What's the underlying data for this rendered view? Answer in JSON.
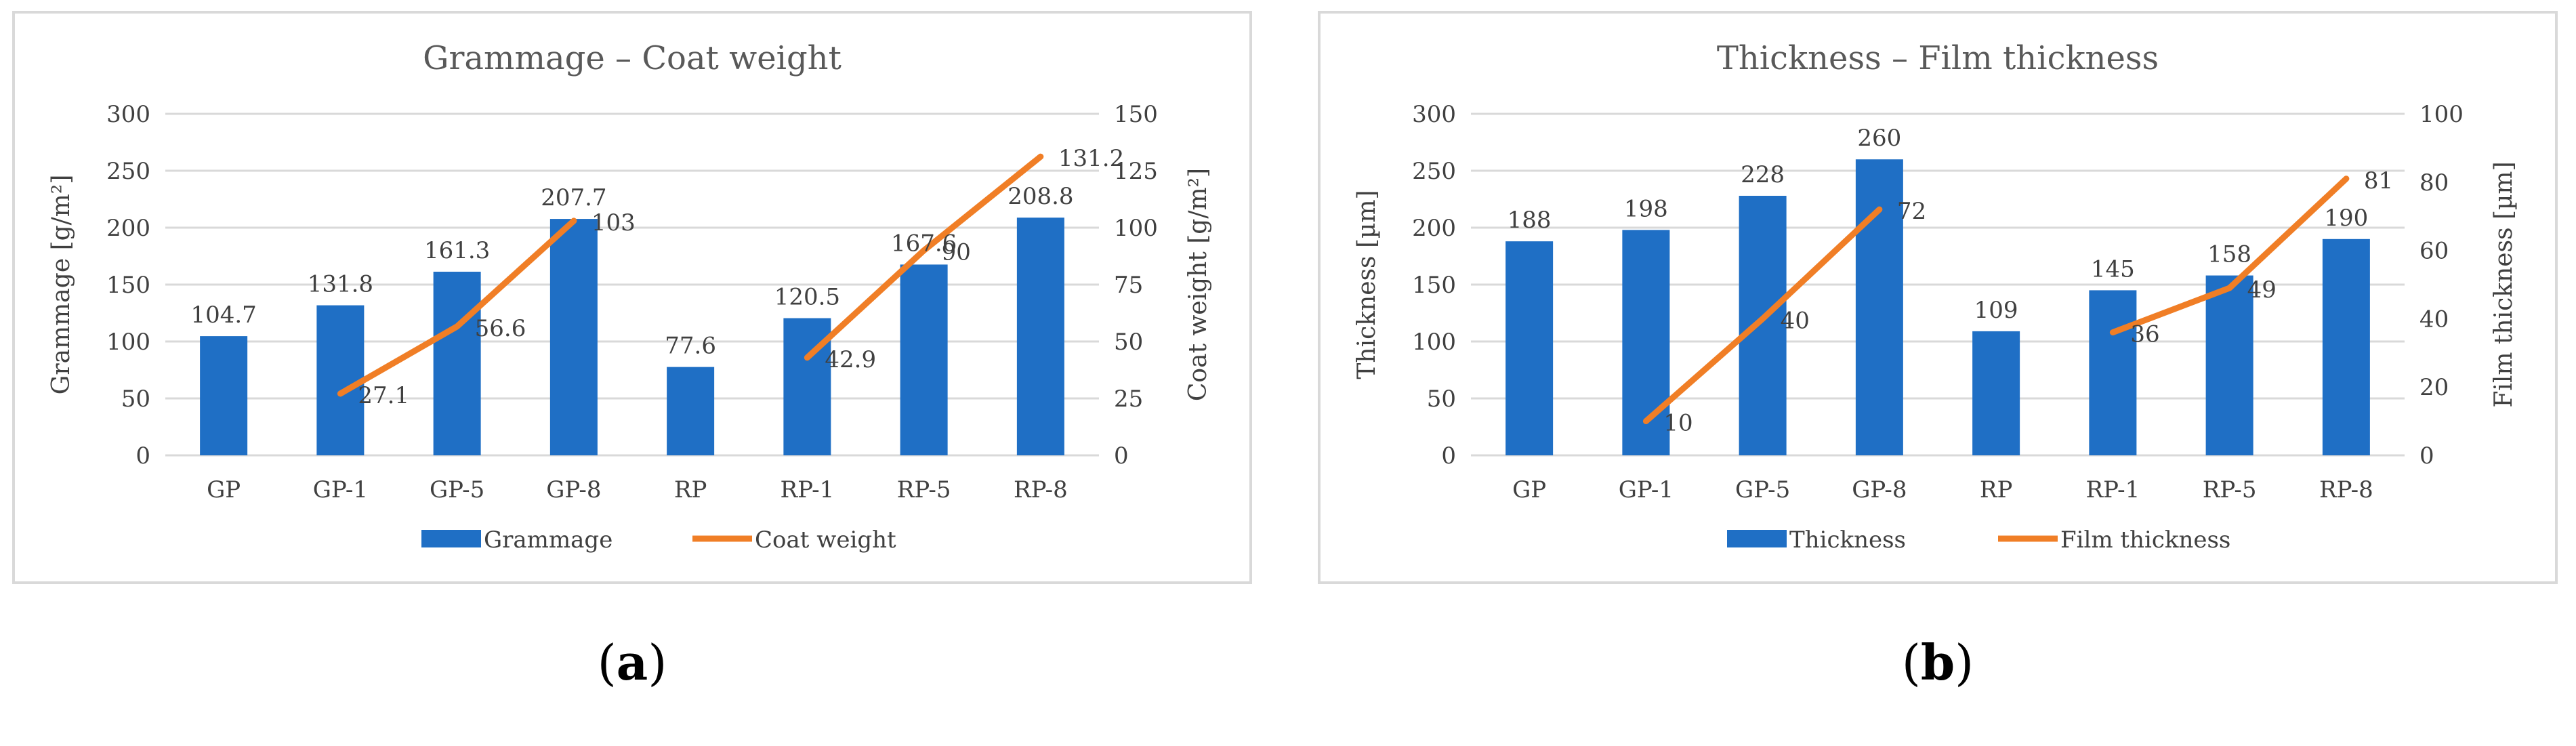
{
  "subfigures": [
    {
      "label": "a"
    },
    {
      "label": "b"
    }
  ],
  "chart_data": [
    {
      "type": "bar",
      "title": "Grammage – Coat weight",
      "categories": [
        "GP",
        "GP-1",
        "GP-5",
        "GP-8",
        "RP",
        "RP-1",
        "RP-5",
        "RP-8"
      ],
      "ylabel": "Grammage [g/m²]",
      "y2label": "Coat weight [g/m²]",
      "ylim": [
        0,
        300
      ],
      "yticks": [
        0,
        50,
        100,
        150,
        200,
        250,
        300
      ],
      "y2lim": [
        0,
        150
      ],
      "y2ticks": [
        0,
        25,
        50,
        75,
        100,
        125,
        150
      ],
      "grid": true,
      "legend_position": "bottom",
      "series": [
        {
          "name": "Grammage",
          "type": "bar",
          "axis": "left",
          "color": "#1f6fc5",
          "values": [
            104.7,
            131.8,
            161.3,
            207.7,
            77.6,
            120.5,
            167.6,
            208.8
          ],
          "labels": [
            "104.7",
            "131.8",
            "161.3",
            "207.7",
            "77.6",
            "120.5",
            "167.6",
            "208.8"
          ]
        },
        {
          "name": "Coat weight",
          "type": "line",
          "axis": "right",
          "color": "#f07e26",
          "values": [
            null,
            27.1,
            56.6,
            103,
            null,
            42.9,
            90,
            131.2
          ],
          "labels": [
            "",
            "27.1",
            "56.6",
            "103",
            "",
            "42.9",
            "90",
            "131.2"
          ]
        }
      ]
    },
    {
      "type": "bar",
      "title": "Thickness – Film thickness",
      "categories": [
        "GP",
        "GP-1",
        "GP-5",
        "GP-8",
        "RP",
        "RP-1",
        "RP-5",
        "RP-8"
      ],
      "ylabel": "Thickness [µm]",
      "y2label": "Film thickness [µm]",
      "ylim": [
        0,
        300
      ],
      "yticks": [
        0,
        50,
        100,
        150,
        200,
        250,
        300
      ],
      "y2lim": [
        0,
        100
      ],
      "y2ticks": [
        0,
        20,
        40,
        60,
        80,
        100
      ],
      "grid": true,
      "legend_position": "bottom",
      "series": [
        {
          "name": "Thickness",
          "type": "bar",
          "axis": "left",
          "color": "#1f6fc5",
          "values": [
            188,
            198,
            228,
            260,
            109,
            145,
            158,
            190
          ],
          "labels": [
            "188",
            "198",
            "228",
            "260",
            "109",
            "145",
            "158",
            "190"
          ]
        },
        {
          "name": "Film thickness",
          "type": "line",
          "axis": "right",
          "color": "#f07e26",
          "values": [
            null,
            10,
            40,
            72,
            null,
            36,
            49,
            81
          ],
          "labels": [
            "",
            "10",
            "40",
            "72",
            "",
            "36",
            "49",
            "81"
          ]
        }
      ]
    }
  ]
}
